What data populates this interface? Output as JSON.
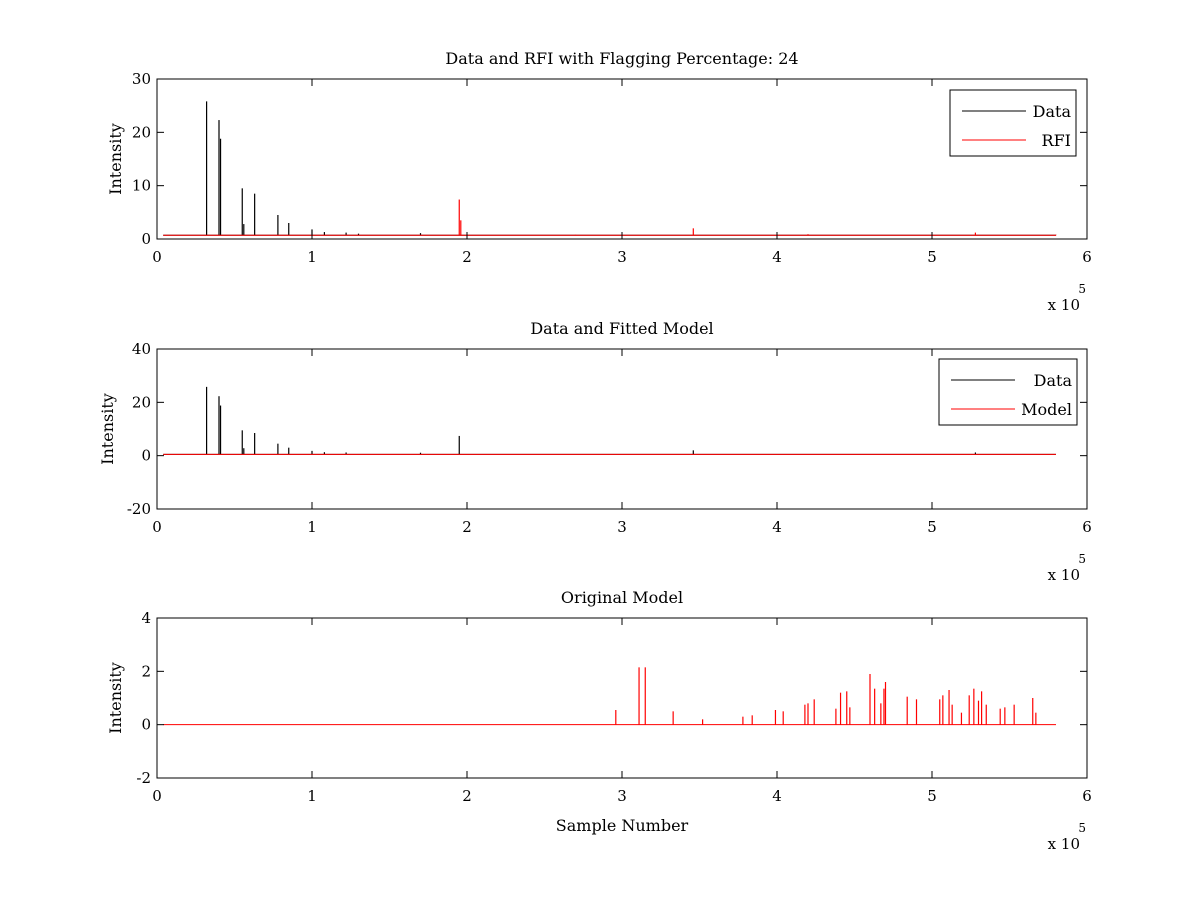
{
  "figure": {
    "background": "#ffffff"
  },
  "chart_data": [
    {
      "type": "line",
      "title": "Data and RFI with Flagging Percentage: 24",
      "xlabel": "",
      "ylabel": "Intensity",
      "xlim": [
        0,
        600000
      ],
      "ylim": [
        0,
        30
      ],
      "xticks": [
        0,
        1,
        2,
        3,
        4,
        5,
        6
      ],
      "yticks": [
        0,
        10,
        20,
        30
      ],
      "x_multiplier": {
        "base": "x 10",
        "exponent": "5"
      },
      "legend_position": "top-right",
      "baseline": 0.7,
      "series": [
        {
          "name": "Data",
          "color": "#000000",
          "spikes": [
            [
              32000,
              25.8
            ],
            [
              40000,
              22.3
            ],
            [
              41000,
              18.8
            ],
            [
              55000,
              9.5
            ],
            [
              56000,
              2.8
            ],
            [
              63000,
              8.5
            ],
            [
              78000,
              4.5
            ],
            [
              85000,
              3.0
            ],
            [
              100000,
              1.8
            ],
            [
              108000,
              1.3
            ],
            [
              122000,
              1.2
            ],
            [
              130000,
              1.0
            ],
            [
              170000,
              1.1
            ]
          ]
        },
        {
          "name": "RFI",
          "color": "#ff0000",
          "spikes": [
            [
              195000,
              7.4
            ],
            [
              196000,
              3.5
            ],
            [
              346000,
              2.0
            ],
            [
              270000,
              0.8
            ],
            [
              420000,
              0.9
            ],
            [
              528000,
              1.2
            ],
            [
              580000,
              0.8
            ]
          ]
        }
      ]
    },
    {
      "type": "line",
      "title": "Data and Fitted Model",
      "xlabel": "",
      "ylabel": "Intensity",
      "xlim": [
        0,
        600000
      ],
      "ylim": [
        -20,
        40
      ],
      "xticks": [
        0,
        1,
        2,
        3,
        4,
        5,
        6
      ],
      "yticks": [
        -20,
        0,
        20,
        40
      ],
      "x_multiplier": {
        "base": "x 10",
        "exponent": "5"
      },
      "legend_position": "top-right",
      "baseline": 0.5,
      "series": [
        {
          "name": "Data",
          "color": "#000000",
          "spikes": [
            [
              32000,
              25.8
            ],
            [
              40000,
              22.3
            ],
            [
              41000,
              18.8
            ],
            [
              55000,
              9.5
            ],
            [
              56000,
              2.8
            ],
            [
              63000,
              8.5
            ],
            [
              78000,
              4.5
            ],
            [
              85000,
              3.0
            ],
            [
              100000,
              1.8
            ],
            [
              108000,
              1.3
            ],
            [
              122000,
              1.2
            ],
            [
              170000,
              1.1
            ],
            [
              195000,
              7.4
            ],
            [
              346000,
              2.0
            ],
            [
              528000,
              1.2
            ]
          ]
        },
        {
          "name": "Model",
          "color": "#ff0000",
          "spikes": []
        }
      ]
    },
    {
      "type": "line",
      "title": "Original Model",
      "xlabel": "Sample Number",
      "ylabel": "Intensity",
      "xlim": [
        0,
        600000
      ],
      "ylim": [
        -2,
        4
      ],
      "xticks": [
        0,
        1,
        2,
        3,
        4,
        5,
        6
      ],
      "yticks": [
        -2,
        0,
        2,
        4
      ],
      "x_multiplier": {
        "base": "x 10",
        "exponent": "5"
      },
      "legend_position": "none",
      "baseline": 0,
      "series": [
        {
          "name": "Model",
          "color": "#ff0000",
          "spikes": [
            [
              296000,
              0.55
            ],
            [
              311000,
              2.15
            ],
            [
              315000,
              2.15
            ],
            [
              333000,
              0.5
            ],
            [
              352000,
              0.2
            ],
            [
              378000,
              0.3
            ],
            [
              384000,
              0.35
            ],
            [
              399000,
              0.55
            ],
            [
              404000,
              0.5
            ],
            [
              418000,
              0.75
            ],
            [
              420000,
              0.8
            ],
            [
              424000,
              0.95
            ],
            [
              438000,
              0.6
            ],
            [
              441000,
              1.2
            ],
            [
              445000,
              1.25
            ],
            [
              447000,
              0.65
            ],
            [
              460000,
              1.9
            ],
            [
              463000,
              1.35
            ],
            [
              467000,
              0.8
            ],
            [
              469000,
              1.35
            ],
            [
              470000,
              1.6
            ],
            [
              484000,
              1.05
            ],
            [
              490000,
              0.95
            ],
            [
              505000,
              0.95
            ],
            [
              507000,
              1.1
            ],
            [
              511000,
              1.3
            ],
            [
              513000,
              0.75
            ],
            [
              519000,
              0.45
            ],
            [
              524000,
              1.1
            ],
            [
              527000,
              1.35
            ],
            [
              530000,
              0.9
            ],
            [
              532000,
              1.25
            ],
            [
              535000,
              0.75
            ],
            [
              544000,
              0.6
            ],
            [
              547000,
              0.65
            ],
            [
              553000,
              0.75
            ],
            [
              565000,
              1.0
            ],
            [
              567000,
              0.45
            ]
          ]
        }
      ]
    }
  ]
}
